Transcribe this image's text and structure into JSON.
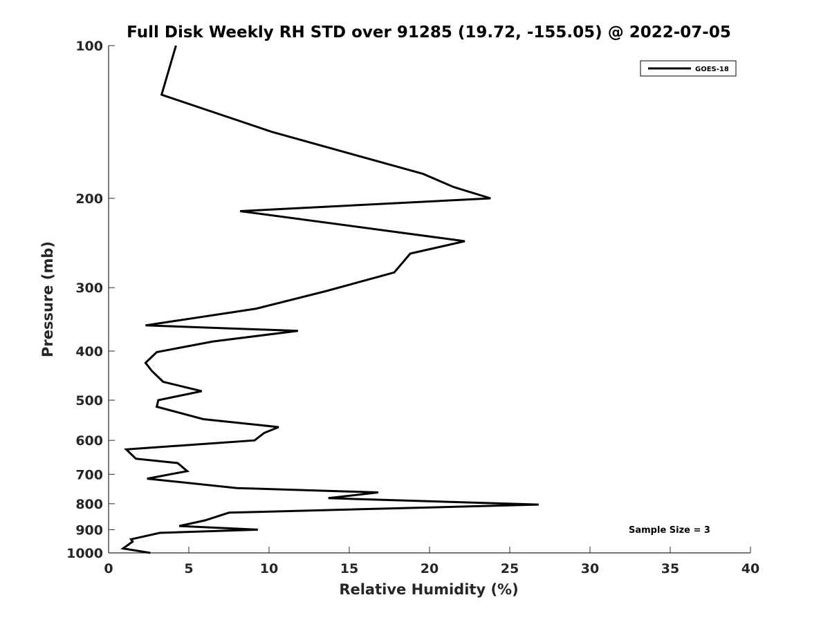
{
  "chart_data": {
    "type": "line",
    "title": "Full Disk Weekly RH STD over 91285 (19.72, -155.05) @ 2022-07-05",
    "xlabel": "Relative Humidity (%)",
    "ylabel": "Pressure (mb)",
    "xlim": [
      0,
      40
    ],
    "ylim": [
      100,
      1000
    ],
    "yscale": "log",
    "y_reversed": true,
    "xticks": [
      0,
      5,
      10,
      15,
      20,
      25,
      30,
      35,
      40
    ],
    "yticks": [
      100,
      200,
      300,
      400,
      500,
      600,
      700,
      800,
      900,
      1000
    ],
    "legend_position": "top-right",
    "annotation": "Sample Size = 3",
    "series": [
      {
        "name": "GOES-18",
        "color": "#000000",
        "x": [
          4.2,
          3.3,
          10.2,
          19.6,
          21.5,
          23.8,
          8.2,
          22.2,
          18.8,
          17.8,
          13.5,
          9.2,
          2.3,
          11.8,
          6.5,
          3.0,
          2.3,
          2.7,
          3.4,
          5.8,
          3.1,
          3.0,
          5.9,
          10.6,
          9.7,
          9.1,
          1.1,
          1.7,
          4.3,
          4.9,
          2.4,
          8.0,
          16.8,
          13.7,
          26.8,
          7.5,
          6.0,
          4.4,
          9.3,
          3.2,
          1.4,
          1.5,
          0.9,
          2.6
        ],
        "y": [
          100,
          125,
          148,
          179,
          190,
          200,
          212,
          243,
          257,
          280,
          305,
          330,
          356,
          365,
          383,
          402,
          422,
          438,
          460,
          480,
          500,
          515,
          545,
          565,
          580,
          600,
          625,
          652,
          665,
          690,
          714,
          745,
          760,
          780,
          803,
          833,
          863,
          885,
          900,
          913,
          940,
          950,
          980,
          1000
        ]
      }
    ]
  }
}
